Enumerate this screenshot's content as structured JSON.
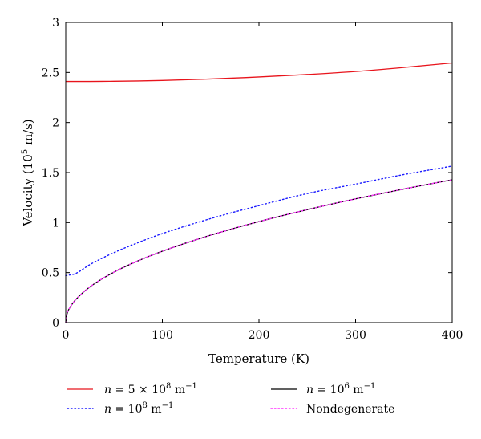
{
  "chart_data": {
    "type": "line",
    "xlabel": "Temperature (K)",
    "ylabel_main": "Velocity (10",
    "ylabel_sup": "5",
    "ylabel_tail": " m/s)",
    "xlim": [
      0,
      400
    ],
    "ylim": [
      0,
      3
    ],
    "xticks": [
      0,
      100,
      200,
      300,
      400
    ],
    "yticks": [
      0,
      0.5,
      1,
      1.5,
      2,
      2.5,
      3
    ],
    "xtick_labels": [
      "0",
      "100",
      "200",
      "300",
      "400"
    ],
    "ytick_labels": [
      "0",
      "0.5",
      "1",
      "1.5",
      "2",
      "2.5",
      "3"
    ],
    "grid": false,
    "legend_placement": "bottom, below plot (2 columns)",
    "series": [
      {
        "key": "n5e8",
        "name": "n = 5 × 10⁸ m⁻¹",
        "color": "#e8141c",
        "style": "solid",
        "x": [
          0,
          25,
          50,
          75,
          100,
          150,
          200,
          250,
          300,
          350,
          400
        ],
        "y": [
          2.41,
          2.41,
          2.412,
          2.415,
          2.42,
          2.435,
          2.455,
          2.48,
          2.51,
          2.55,
          2.595
        ]
      },
      {
        "key": "n1e8",
        "name": "n = 10⁸ m⁻¹",
        "color": "#1a1aff",
        "style": "dotted",
        "x": [
          0,
          10,
          25,
          50,
          75,
          100,
          150,
          200,
          250,
          300,
          350,
          400
        ],
        "y": [
          0.47,
          0.49,
          0.58,
          0.7,
          0.8,
          0.89,
          1.04,
          1.17,
          1.29,
          1.385,
          1.48,
          1.565
        ]
      },
      {
        "key": "n1e6",
        "name": "n = 10⁶ m⁻¹",
        "color": "#000000",
        "style": "solid",
        "x": [
          0,
          1,
          5,
          10,
          25,
          50,
          75,
          100,
          150,
          200,
          250,
          300,
          350,
          400
        ],
        "y": [
          0,
          0.072,
          0.16,
          0.226,
          0.357,
          0.505,
          0.618,
          0.714,
          0.874,
          1.01,
          1.129,
          1.237,
          1.336,
          1.428
        ]
      },
      {
        "key": "nondeg",
        "name": "Nondegenerate",
        "color": "#ff33ff",
        "style": "dotted",
        "x": [
          0,
          1,
          5,
          10,
          25,
          50,
          75,
          100,
          150,
          200,
          250,
          300,
          350,
          400
        ],
        "y": [
          0,
          0.072,
          0.16,
          0.226,
          0.357,
          0.505,
          0.618,
          0.714,
          0.874,
          1.01,
          1.129,
          1.237,
          1.336,
          1.428
        ]
      }
    ],
    "legend": [
      {
        "series": "n5e8",
        "pre": "n",
        "mid": " = 5 × 10",
        "sup": "8",
        "post": " m",
        "sup2": "−1"
      },
      {
        "series": "n1e6",
        "pre": "n",
        "mid": " = 10",
        "sup": "6",
        "post": " m",
        "sup2": "−1"
      },
      {
        "series": "n1e8",
        "pre": "n",
        "mid": " = 10",
        "sup": "8",
        "post": " m",
        "sup2": "−1"
      },
      {
        "series": "nondeg",
        "text": "Nondegenerate"
      }
    ]
  }
}
